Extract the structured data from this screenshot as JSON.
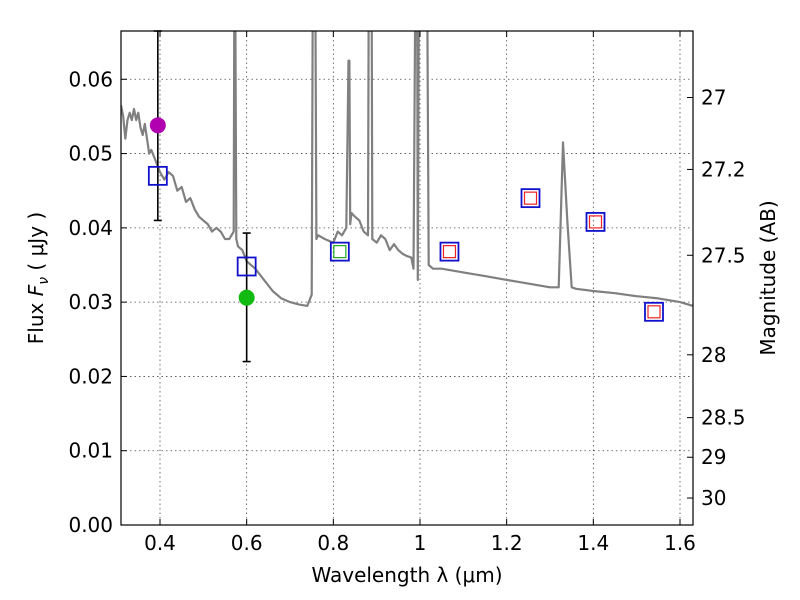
{
  "chart_data": {
    "type": "scatter",
    "xlabel": "Wavelength  λ (μm)",
    "ylabel_left": {
      "prefix": "Flux ",
      "symbol": "F",
      "subscript": "ν",
      "suffix": " ( μJy )"
    },
    "ylabel_right": "Magnitude (AB)",
    "xlim": [
      0.31,
      1.63
    ],
    "ylim": [
      0.0,
      0.0665
    ],
    "x_ticks": [
      0.4,
      0.6,
      0.8,
      1.0,
      1.2,
      1.4,
      1.6
    ],
    "x_tick_labels": [
      "0.4",
      "0.6",
      "0.8",
      "1",
      "1.2",
      "1.4",
      "1.6"
    ],
    "y_ticks": [
      0.0,
      0.01,
      0.02,
      0.03,
      0.04,
      0.05,
      0.06
    ],
    "y_tick_labels": [
      "0.00",
      "0.01",
      "0.02",
      "0.03",
      "0.04",
      "0.05",
      "0.06"
    ],
    "right_ticks": [
      {
        "mag": 27.0,
        "label": "27"
      },
      {
        "mag": 27.2,
        "label": "27.2"
      },
      {
        "mag": 27.5,
        "label": "27.5"
      },
      {
        "mag": 28.0,
        "label": "28"
      },
      {
        "mag": 28.5,
        "label": "28.5"
      },
      {
        "mag": 29.0,
        "label": "29"
      },
      {
        "mag": 30.0,
        "label": "30"
      }
    ],
    "grid": true,
    "colors": {
      "spectrum": "#808080",
      "observed_box": "#1111cc",
      "model_box": "#ee2222",
      "model_box_green": "#22aa22",
      "point_magenta": "#b000b0",
      "point_green": "#11bb11",
      "errorbar": "#000000"
    },
    "spectrum": {
      "name": "model SED",
      "x": [
        0.31,
        0.315,
        0.32,
        0.325,
        0.33,
        0.335,
        0.34,
        0.345,
        0.35,
        0.355,
        0.36,
        0.365,
        0.37,
        0.375,
        0.38,
        0.39,
        0.4,
        0.41,
        0.42,
        0.43,
        0.44,
        0.45,
        0.46,
        0.47,
        0.48,
        0.49,
        0.5,
        0.51,
        0.52,
        0.53,
        0.54,
        0.55,
        0.56,
        0.565,
        0.57,
        0.572,
        0.573,
        0.576,
        0.58,
        0.59,
        0.6,
        0.62,
        0.64,
        0.66,
        0.68,
        0.7,
        0.72,
        0.74,
        0.75,
        0.753,
        0.755,
        0.757,
        0.758,
        0.761,
        0.765,
        0.78,
        0.8,
        0.81,
        0.82,
        0.83,
        0.835,
        0.837,
        0.839,
        0.842,
        0.85,
        0.86,
        0.87,
        0.88,
        0.882,
        0.884,
        0.886,
        0.888,
        0.89,
        0.9,
        0.91,
        0.92,
        0.93,
        0.94,
        0.95,
        0.96,
        0.97,
        0.98,
        0.985,
        0.99,
        0.993,
        0.995,
        0.998,
        1.0,
        1.003,
        1.006,
        1.008,
        1.012,
        1.016,
        1.02,
        1.03,
        1.04,
        1.05,
        1.1,
        1.15,
        1.2,
        1.25,
        1.3,
        1.32,
        1.33,
        1.34,
        1.35,
        1.36,
        1.4,
        1.45,
        1.5,
        1.55,
        1.6,
        1.63
      ],
      "y": [
        0.0565,
        0.055,
        0.052,
        0.0545,
        0.0555,
        0.0545,
        0.056,
        0.0545,
        0.0555,
        0.0535,
        0.0525,
        0.054,
        0.052,
        0.05,
        0.0505,
        0.049,
        0.0475,
        0.0465,
        0.0475,
        0.047,
        0.045,
        0.0455,
        0.0435,
        0.044,
        0.0425,
        0.0415,
        0.041,
        0.0405,
        0.0395,
        0.04,
        0.0395,
        0.0385,
        0.0385,
        0.039,
        0.0395,
        0.08,
        0.08,
        0.0385,
        0.0375,
        0.037,
        0.0355,
        0.0345,
        0.033,
        0.0315,
        0.0305,
        0.03,
        0.0297,
        0.0295,
        0.031,
        0.08,
        0.08,
        0.08,
        0.08,
        0.0385,
        0.039,
        0.0385,
        0.038,
        0.0395,
        0.039,
        0.04,
        0.0625,
        0.0625,
        0.0405,
        0.042,
        0.0415,
        0.041,
        0.0395,
        0.039,
        0.08,
        0.08,
        0.08,
        0.08,
        0.0385,
        0.038,
        0.039,
        0.0385,
        0.037,
        0.0378,
        0.037,
        0.0365,
        0.0362,
        0.036,
        0.0345,
        0.08,
        0.08,
        0.033,
        0.08,
        0.08,
        0.08,
        0.08,
        0.08,
        0.08,
        0.08,
        0.035,
        0.0345,
        0.0345,
        0.0345,
        0.034,
        0.0335,
        0.033,
        0.0325,
        0.032,
        0.032,
        0.0515,
        0.041,
        0.032,
        0.0318,
        0.0315,
        0.0312,
        0.0308,
        0.0305,
        0.03,
        0.0295
      ]
    },
    "observed_boxes": [
      {
        "x": 0.395,
        "y": 0.047,
        "face": "none"
      },
      {
        "x": 0.6,
        "y": 0.0348,
        "face": "none"
      },
      {
        "x": 0.815,
        "y": 0.0368,
        "face": "green"
      },
      {
        "x": 1.068,
        "y": 0.0368,
        "face": "red"
      },
      {
        "x": 1.255,
        "y": 0.044,
        "face": "red"
      },
      {
        "x": 1.405,
        "y": 0.0408,
        "face": "red"
      },
      {
        "x": 1.54,
        "y": 0.0287,
        "face": "red"
      }
    ],
    "points": [
      {
        "name": "magenta point",
        "x": 0.395,
        "y": 0.0538,
        "color": "magenta",
        "yerr_low": 0.041,
        "yerr_high": 0.0665
      },
      {
        "name": "green point",
        "x": 0.6,
        "y": 0.0306,
        "color": "green",
        "yerr_low": 0.022,
        "yerr_high": 0.0393
      }
    ]
  }
}
